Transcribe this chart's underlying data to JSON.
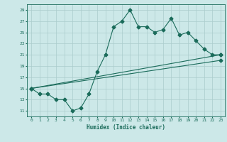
{
  "xlabel": "Humidex (Indice chaleur)",
  "bg_color": "#cce8e8",
  "grid_color": "#aacccc",
  "line_color": "#1a6b5a",
  "xlim": [
    -0.5,
    23.5
  ],
  "ylim": [
    10.0,
    30.0
  ],
  "yticks": [
    11,
    13,
    15,
    17,
    19,
    21,
    23,
    25,
    27,
    29
  ],
  "xticks": [
    0,
    1,
    2,
    3,
    4,
    5,
    6,
    7,
    8,
    9,
    10,
    11,
    12,
    13,
    14,
    15,
    16,
    17,
    18,
    19,
    20,
    21,
    22,
    23
  ],
  "line1_x": [
    0,
    1,
    2,
    3,
    4,
    5,
    6,
    7,
    8,
    9,
    10,
    11,
    12,
    13,
    14,
    15,
    16,
    17,
    18,
    19,
    20,
    21,
    22,
    23
  ],
  "line1_y": [
    15,
    14,
    14,
    13,
    13,
    11,
    11.5,
    14,
    18,
    21,
    26,
    27,
    29,
    26,
    26,
    25,
    25.5,
    27.5,
    24.5,
    25,
    23.5,
    22,
    21,
    21
  ],
  "line2_x": [
    0,
    23
  ],
  "line2_y": [
    15,
    21
  ],
  "line3_x": [
    0,
    23
  ],
  "line3_y": [
    15,
    20
  ]
}
